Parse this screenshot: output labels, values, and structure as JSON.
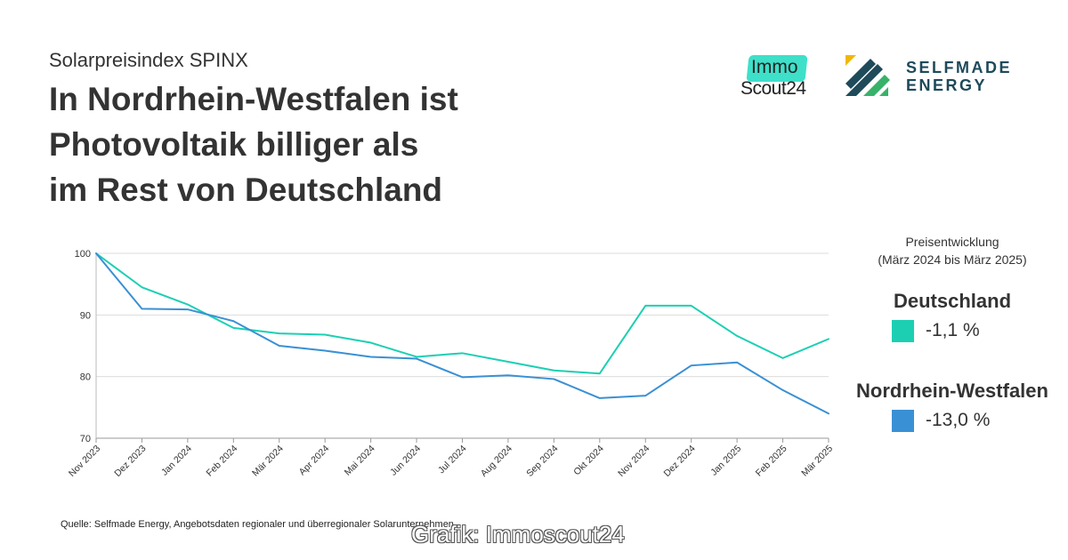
{
  "header": {
    "subtitle": "Solarpreisindex SPINX",
    "title_lines": [
      "In Nordrhein-Westfalen ist",
      "Photovoltaik billiger als",
      "im Rest von Deutschland"
    ]
  },
  "logos": {
    "immoscout_badge": "Immo",
    "immoscout_text": "Scout24",
    "selfmade_line1": "SELFMADE",
    "selfmade_line2": "ENERGY"
  },
  "legend": {
    "heading_line1": "Preisentwicklung",
    "heading_line2": "(März 2024 bis März 2025)",
    "entries": [
      {
        "name": "Deutschland",
        "value": "-1,1 %",
        "color": "#1ccfb3"
      },
      {
        "name": "Nordrhein-Westfalen",
        "value": "-13,0 %",
        "color": "#3a90d4"
      }
    ]
  },
  "chart_data": {
    "type": "line",
    "categories": [
      "Nov 2023",
      "Dez 2023",
      "Jan 2024",
      "Feb 2024",
      "Mär 2024",
      "Apr 2024",
      "Mai 2024",
      "Jun 2024",
      "Jul 2024",
      "Aug 2024",
      "Sep 2024",
      "Okt 2024",
      "Nov 2024",
      "Dez 2024",
      "Jan 2025",
      "Feb 2025",
      "Mär 2025"
    ],
    "series": [
      {
        "name": "Deutschland",
        "color": "#1ccfb3",
        "values": [
          100,
          94.5,
          91.7,
          87.9,
          87.0,
          86.8,
          85.5,
          83.2,
          83.8,
          82.4,
          81.0,
          80.5,
          91.5,
          91.5,
          86.6,
          83.0,
          86.1
        ]
      },
      {
        "name": "Nordrhein-Westfalen",
        "color": "#3a90d4",
        "values": [
          100,
          91.0,
          90.9,
          89.0,
          85.0,
          84.2,
          83.2,
          82.9,
          79.9,
          80.2,
          79.6,
          76.5,
          76.9,
          81.8,
          82.3,
          77.8,
          74.0
        ]
      }
    ],
    "yticks": [
      70,
      80,
      90,
      100
    ],
    "ylim": [
      70,
      100
    ],
    "grid": true,
    "legend_position": "right",
    "xlabel": "",
    "ylabel": ""
  },
  "footer": {
    "source": "Quelle: Selfmade Energy, Angebotsdaten regionaler und überregionaler Solarunternehmen",
    "credit": "Grafik: Immoscout24"
  }
}
